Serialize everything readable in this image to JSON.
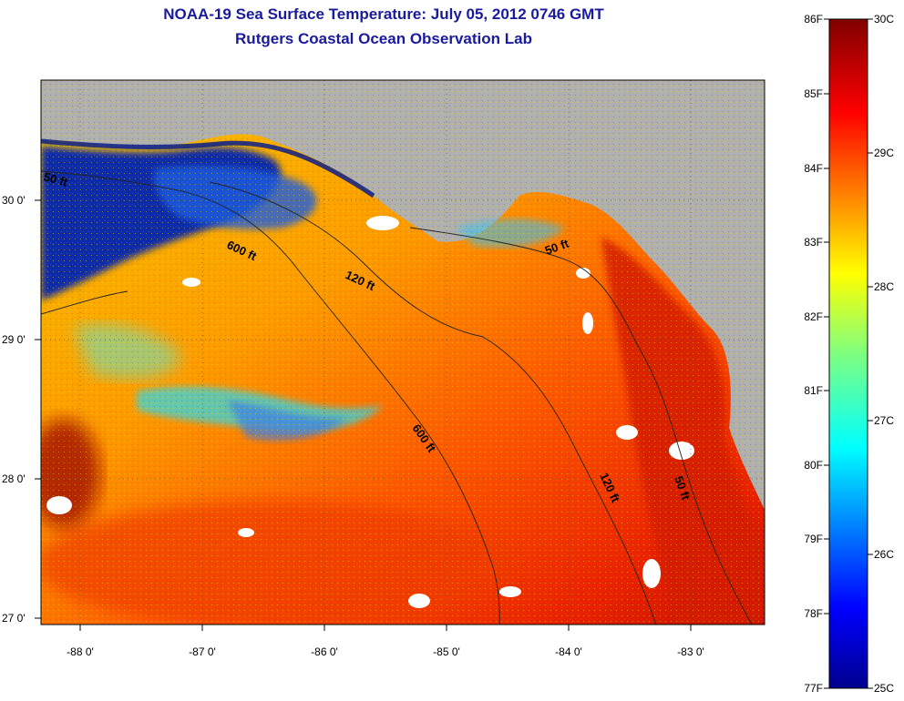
{
  "title": {
    "line1": "NOAA-19 Sea Surface Temperature:  July 05, 2012 0746 GMT",
    "line2": "Rutgers Coastal Ocean Observation Lab"
  },
  "map": {
    "lon_ticks": [
      "-88 0'",
      "-87 0'",
      "-86 0'",
      "-85 0'",
      "-84 0'",
      "-83 0'"
    ],
    "lat_ticks": [
      "30 0'",
      "29 0'",
      "28 0'",
      "27 0'"
    ],
    "contours": [
      "50 ft",
      "600 ft",
      "120 ft",
      "50 ft",
      "600 ft",
      "120 ft",
      "50 ft"
    ],
    "colors": {
      "land": "#b0b0b0",
      "background": "#ffffff"
    }
  },
  "colorbar": {
    "fahrenheit": [
      "86F",
      "85F",
      "84F",
      "83F",
      "82F",
      "81F",
      "80F",
      "79F",
      "78F",
      "77F"
    ],
    "celsius": [
      "30C",
      "29C",
      "28C",
      "27C",
      "26C",
      "25C"
    ]
  }
}
